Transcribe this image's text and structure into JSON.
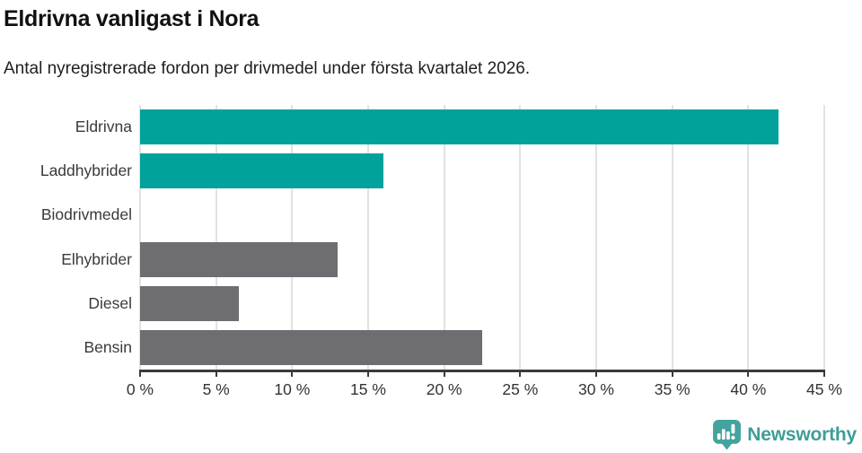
{
  "header": {
    "title": "Eldrivna vanligast i Nora",
    "subtitle": "Antal nyregistrerade fordon per drivmedel under första kvartalet 2026."
  },
  "chart_data": {
    "type": "bar",
    "orientation": "horizontal",
    "title": "Eldrivna vanligast i Nora",
    "subtitle": "Antal nyregistrerade fordon per drivmedel under första kvartalet 2026.",
    "categories": [
      "Eldrivna",
      "Laddhybrider",
      "Biodrivmedel",
      "Elhybrider",
      "Diesel",
      "Bensin"
    ],
    "values": [
      42,
      16,
      0,
      13,
      6.5,
      22.5
    ],
    "unit": "%",
    "bar_colors": [
      "#00a29b",
      "#00a29b",
      "#00a29b",
      "#6e6e72",
      "#6e6e72",
      "#6e6e72"
    ],
    "xlabel": "",
    "ylabel": "",
    "xlim": [
      0,
      45
    ],
    "xticks": [
      0,
      5,
      10,
      15,
      20,
      25,
      30,
      35,
      40,
      45
    ],
    "xtick_suffix": " %",
    "grid": "vertical-only",
    "legend": "none"
  },
  "footer": {
    "brand": "Newsworthy",
    "logo_icon": "speech-bubble-bar-chart-icon",
    "brand_color": "#3f9d97"
  },
  "colors": {
    "accent_teal": "#00a29b",
    "neutral_gray": "#6e6e72",
    "gridline": "#e2e2e2",
    "axis": "#3b3b3b",
    "label_text": "#3a3a3a"
  }
}
